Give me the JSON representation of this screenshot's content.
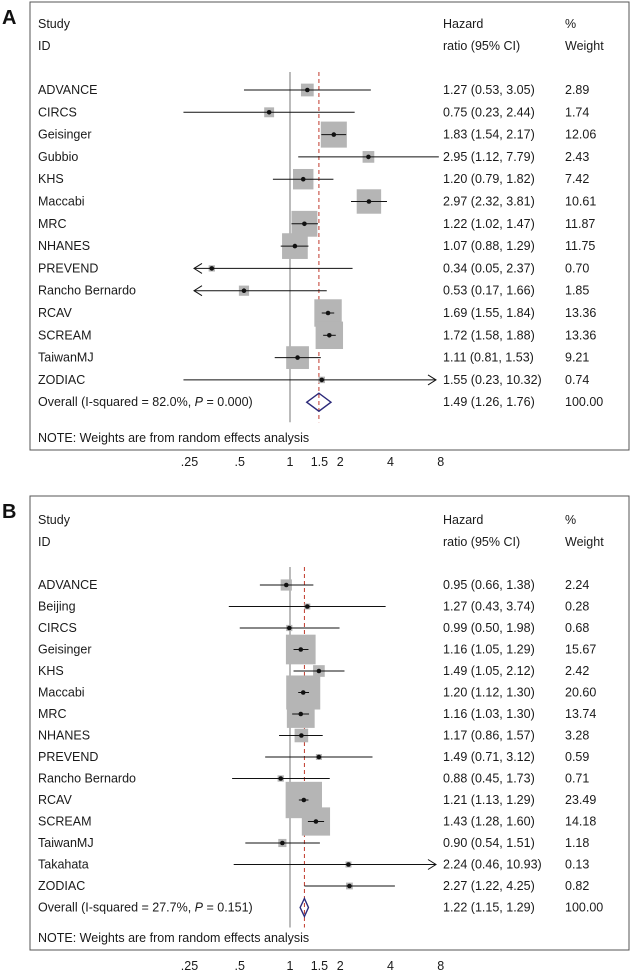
{
  "chart_data": [
    {
      "type": "forest",
      "panel_label": "A",
      "header": {
        "study": "Study",
        "id": "ID",
        "hr_line1": "Hazard",
        "hr_line2": "ratio (95% CI)",
        "weight_line1": "%",
        "weight_line2": "Weight"
      },
      "x_scale": "log",
      "xlim": [
        0.18,
        10
      ],
      "x_ticks": [
        0.25,
        0.5,
        1,
        1.5,
        2,
        4,
        8
      ],
      "x_tick_labels": [
        ".25",
        ".5",
        "1",
        "1.5",
        "2",
        "4",
        "8"
      ],
      "null_line": 1,
      "pooled_line": 1.49,
      "studies": [
        {
          "name": "ADVANCE",
          "hr": 1.27,
          "lo": 0.53,
          "hi": 3.05,
          "hr_text": "1.27 (0.53, 3.05)",
          "weight": 2.89,
          "weight_text": "2.89"
        },
        {
          "name": "CIRCS",
          "hr": 0.75,
          "lo": 0.23,
          "hi": 2.44,
          "hr_text": "0.75 (0.23, 2.44)",
          "weight": 1.74,
          "weight_text": "1.74"
        },
        {
          "name": "Geisinger",
          "hr": 1.83,
          "lo": 1.54,
          "hi": 2.17,
          "hr_text": "1.83 (1.54, 2.17)",
          "weight": 12.06,
          "weight_text": "12.06"
        },
        {
          "name": "Gubbio",
          "hr": 2.95,
          "lo": 1.12,
          "hi": 7.79,
          "hr_text": "2.95 (1.12, 7.79)",
          "weight": 2.43,
          "weight_text": "2.43"
        },
        {
          "name": "KHS",
          "hr": 1.2,
          "lo": 0.79,
          "hi": 1.82,
          "hr_text": "1.20 (0.79, 1.82)",
          "weight": 7.42,
          "weight_text": "7.42"
        },
        {
          "name": "Maccabi",
          "hr": 2.97,
          "lo": 2.32,
          "hi": 3.81,
          "hr_text": "2.97 (2.32, 3.81)",
          "weight": 10.61,
          "weight_text": "10.61"
        },
        {
          "name": "MRC",
          "hr": 1.22,
          "lo": 1.02,
          "hi": 1.47,
          "hr_text": "1.22 (1.02, 1.47)",
          "weight": 11.87,
          "weight_text": "11.87"
        },
        {
          "name": "NHANES",
          "hr": 1.07,
          "lo": 0.88,
          "hi": 1.29,
          "hr_text": "1.07 (0.88, 1.29)",
          "weight": 11.75,
          "weight_text": "11.75"
        },
        {
          "name": "PREVEND",
          "hr": 0.34,
          "lo": 0.05,
          "hi": 2.37,
          "hr_text": "0.34 (0.05, 2.37)",
          "weight": 0.7,
          "weight_text": "0.70"
        },
        {
          "name": "Rancho Bernardo",
          "hr": 0.53,
          "lo": 0.17,
          "hi": 1.66,
          "hr_text": "0.53 (0.17, 1.66)",
          "weight": 1.85,
          "weight_text": "1.85"
        },
        {
          "name": "RCAV",
          "hr": 1.69,
          "lo": 1.55,
          "hi": 1.84,
          "hr_text": "1.69 (1.55, 1.84)",
          "weight": 13.36,
          "weight_text": "13.36"
        },
        {
          "name": "SCREAM",
          "hr": 1.72,
          "lo": 1.58,
          "hi": 1.88,
          "hr_text": "1.72 (1.58, 1.88)",
          "weight": 13.36,
          "weight_text": "13.36"
        },
        {
          "name": "TaiwanMJ",
          "hr": 1.11,
          "lo": 0.81,
          "hi": 1.53,
          "hr_text": "1.11 (0.81, 1.53)",
          "weight": 9.21,
          "weight_text": "9.21"
        },
        {
          "name": "ZODIAC",
          "hr": 1.55,
          "lo": 0.23,
          "hi": 10.32,
          "hr_text": "1.55 (0.23, 10.32)",
          "weight": 0.74,
          "weight_text": "0.74"
        }
      ],
      "overall": {
        "label_prefix": "Overall  (I-squared = 82.0%, ",
        "p_symbol": "P",
        "label_suffix": " = 0.000)",
        "hr": 1.49,
        "lo": 1.26,
        "hi": 1.76,
        "hr_text": "1.49 (1.26, 1.76)",
        "weight_text": "100.00"
      },
      "note": "NOTE: Weights are from random effects analysis"
    },
    {
      "type": "forest",
      "panel_label": "B",
      "header": {
        "study": "Study",
        "id": "ID",
        "hr_line1": "Hazard",
        "hr_line2": "ratio (95% CI)",
        "weight_line1": "%",
        "weight_line2": "Weight"
      },
      "x_scale": "log",
      "xlim": [
        0.18,
        10
      ],
      "x_ticks": [
        0.25,
        0.5,
        1,
        1.5,
        2,
        4,
        8
      ],
      "x_tick_labels": [
        ".25",
        ".5",
        "1",
        "1.5",
        "2",
        "4",
        "8"
      ],
      "null_line": 1,
      "pooled_line": 1.22,
      "studies": [
        {
          "name": "ADVANCE",
          "hr": 0.95,
          "lo": 0.66,
          "hi": 1.38,
          "hr_text": "0.95 (0.66, 1.38)",
          "weight": 2.24,
          "weight_text": "2.24"
        },
        {
          "name": "Beijing",
          "hr": 1.27,
          "lo": 0.43,
          "hi": 3.74,
          "hr_text": "1.27 (0.43, 3.74)",
          "weight": 0.28,
          "weight_text": "0.28"
        },
        {
          "name": "CIRCS",
          "hr": 0.99,
          "lo": 0.5,
          "hi": 1.98,
          "hr_text": "0.99 (0.50, 1.98)",
          "weight": 0.68,
          "weight_text": "0.68"
        },
        {
          "name": "Geisinger",
          "hr": 1.16,
          "lo": 1.05,
          "hi": 1.29,
          "hr_text": "1.16 (1.05, 1.29)",
          "weight": 15.67,
          "weight_text": "15.67"
        },
        {
          "name": "KHS",
          "hr": 1.49,
          "lo": 1.05,
          "hi": 2.12,
          "hr_text": "1.49 (1.05, 2.12)",
          "weight": 2.42,
          "weight_text": "2.42"
        },
        {
          "name": "Maccabi",
          "hr": 1.2,
          "lo": 1.12,
          "hi": 1.3,
          "hr_text": "1.20 (1.12, 1.30)",
          "weight": 20.6,
          "weight_text": "20.60"
        },
        {
          "name": "MRC",
          "hr": 1.16,
          "lo": 1.03,
          "hi": 1.3,
          "hr_text": "1.16 (1.03, 1.30)",
          "weight": 13.74,
          "weight_text": "13.74"
        },
        {
          "name": "NHANES",
          "hr": 1.17,
          "lo": 0.86,
          "hi": 1.57,
          "hr_text": "1.17 (0.86, 1.57)",
          "weight": 3.28,
          "weight_text": "3.28"
        },
        {
          "name": "PREVEND",
          "hr": 1.49,
          "lo": 0.71,
          "hi": 3.12,
          "hr_text": "1.49 (0.71, 3.12)",
          "weight": 0.59,
          "weight_text": "0.59"
        },
        {
          "name": "Rancho Bernardo",
          "hr": 0.88,
          "lo": 0.45,
          "hi": 1.73,
          "hr_text": "0.88 (0.45, 1.73)",
          "weight": 0.71,
          "weight_text": "0.71"
        },
        {
          "name": "RCAV",
          "hr": 1.21,
          "lo": 1.13,
          "hi": 1.29,
          "hr_text": "1.21 (1.13, 1.29)",
          "weight": 23.49,
          "weight_text": "23.49"
        },
        {
          "name": "SCREAM",
          "hr": 1.43,
          "lo": 1.28,
          "hi": 1.6,
          "hr_text": "1.43 (1.28, 1.60)",
          "weight": 14.18,
          "weight_text": "14.18"
        },
        {
          "name": "TaiwanMJ",
          "hr": 0.9,
          "lo": 0.54,
          "hi": 1.51,
          "hr_text": "0.90 (0.54, 1.51)",
          "weight": 1.18,
          "weight_text": "1.18"
        },
        {
          "name": "Takahata",
          "hr": 2.24,
          "lo": 0.46,
          "hi": 10.93,
          "hr_text": "2.24 (0.46, 10.93)",
          "weight": 0.13,
          "weight_text": "0.13"
        },
        {
          "name": "ZODIAC",
          "hr": 2.27,
          "lo": 1.22,
          "hi": 4.25,
          "hr_text": "2.27 (1.22, 4.25)",
          "weight": 0.82,
          "weight_text": "0.82"
        }
      ],
      "overall": {
        "label_prefix": "Overall  (I-squared = 27.7%, ",
        "p_symbol": "P",
        "label_suffix": " = 0.151)",
        "hr": 1.22,
        "lo": 1.15,
        "hi": 1.29,
        "hr_text": "1.22 (1.15, 1.29)",
        "weight_text": "100.00"
      },
      "note": "NOTE: Weights are from random effects analysis"
    }
  ]
}
